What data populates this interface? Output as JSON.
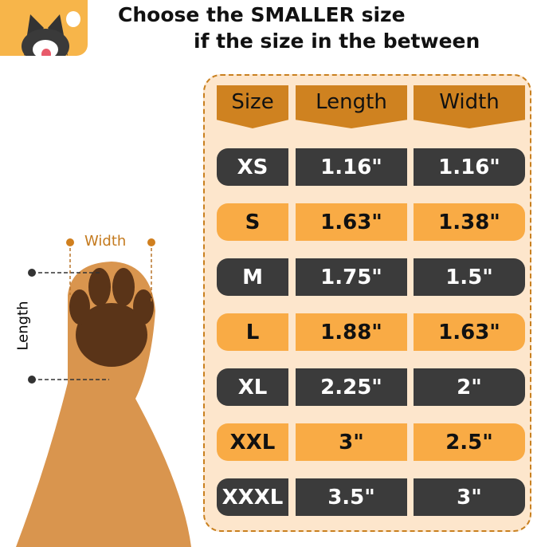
{
  "title": {
    "line1": "Choose the SMALLER size",
    "line2": "if the size in the between"
  },
  "table": {
    "headers": [
      "Size",
      "Length",
      "Width"
    ],
    "rows": [
      {
        "size": "XS",
        "length": "1.16\"",
        "width": "1.16\""
      },
      {
        "size": "S",
        "length": "1.63\"",
        "width": "1.38\""
      },
      {
        "size": "M",
        "length": "1.75\"",
        "width": "1.5\""
      },
      {
        "size": "L",
        "length": "1.88\"",
        "width": "1.63\""
      },
      {
        "size": "XL",
        "length": "2.25\"",
        "width": "2\""
      },
      {
        "size": "XXL",
        "length": "3\"",
        "width": "2.5\""
      },
      {
        "size": "XXXL",
        "length": "3.5\"",
        "width": "3\""
      }
    ]
  },
  "diagram": {
    "width_label": "Width",
    "length_label": "Length"
  },
  "colors": {
    "header": "#cf8220",
    "dark_row": "#3b3b3b",
    "light_row": "#f9ab45",
    "background": "#fde6cc"
  }
}
